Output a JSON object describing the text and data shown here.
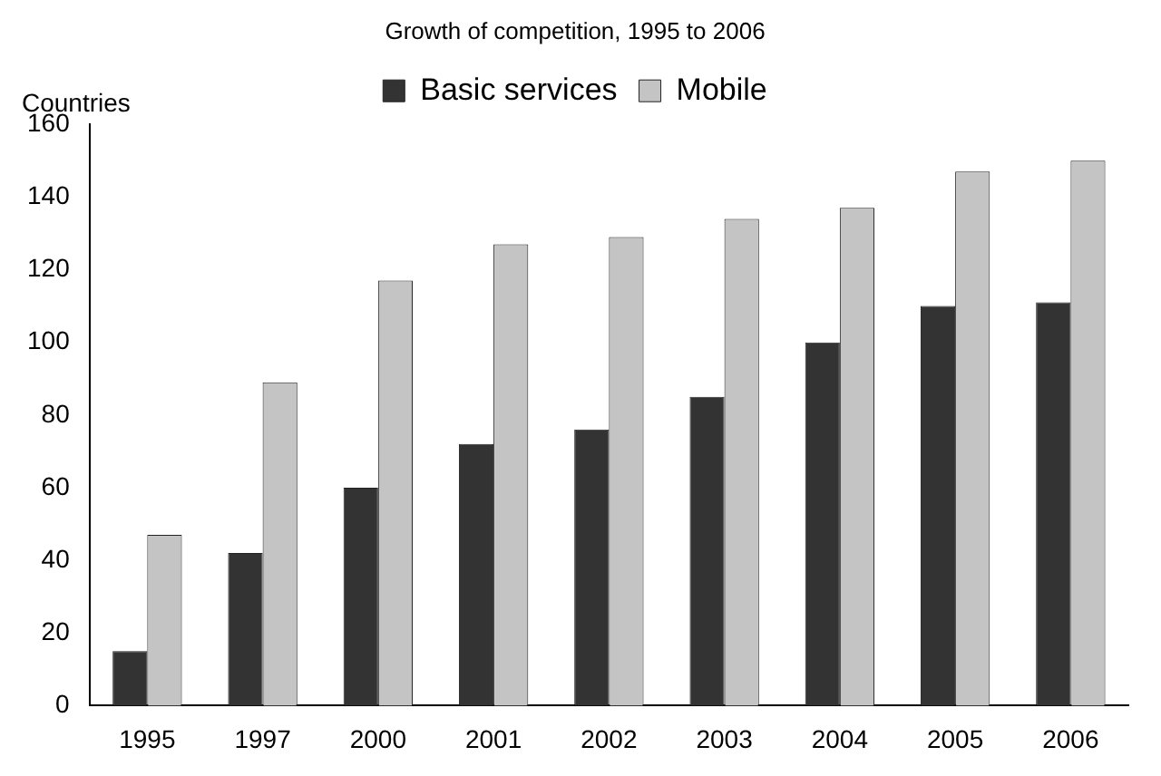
{
  "chart_data": {
    "type": "bar",
    "title": "Growth of competition, 1995 to 2006",
    "ylabel": "Countries",
    "categories": [
      "1995",
      "1997",
      "2000",
      "2001",
      "2002",
      "2003",
      "2004",
      "2005",
      "2006"
    ],
    "series": [
      {
        "name": "Basic services",
        "color": "#333333",
        "values": [
          15,
          42,
          60,
          72,
          76,
          85,
          100,
          110,
          111
        ]
      },
      {
        "name": "Mobile",
        "color": "#c4c4c4",
        "values": [
          47,
          89,
          117,
          127,
          129,
          134,
          137,
          147,
          150
        ]
      }
    ],
    "ylim": [
      0,
      160
    ],
    "yticks": [
      0,
      20,
      40,
      60,
      80,
      100,
      120,
      140,
      160
    ],
    "grid": false,
    "legend": "top"
  }
}
